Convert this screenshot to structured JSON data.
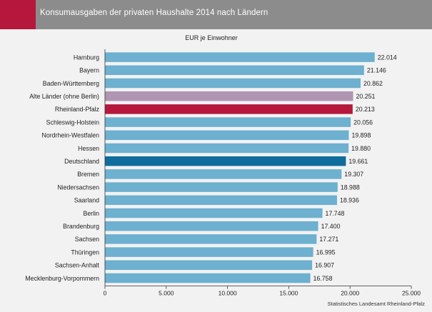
{
  "header": {
    "title": "Konsumausgaben der privaten Haushalte 2014 nach Ländern"
  },
  "source": "Statistisches Landesamt Rheinland-Pfalz",
  "colors": {
    "default_bar": "#6db0cf",
    "highlight_alte_laender": "#b095b3",
    "highlight_rheinland_pfalz": "#b5173d",
    "highlight_deutschland": "#0f6c9c",
    "header_bg": "#8c8c8c",
    "header_accent": "#b5173d"
  },
  "chart_data": {
    "type": "bar",
    "orientation": "horizontal",
    "subtitle": "EUR je Einwohner",
    "categories": [
      "Hamburg",
      "Bayern",
      "Baden-Württemberg",
      "Alte Länder (ohne Berlin)",
      "Rheinland-Pfalz",
      "Schleswig-Holstein",
      "Nordrhein-Westfalen",
      "Hessen",
      "Deutschland",
      "Bremen",
      "Niedersachsen",
      "Saarland",
      "Berlin",
      "Brandenburg",
      "Sachsen",
      "Thüringen",
      "Sachsen-Anhalt",
      "Mecklenburg-Vorpommern"
    ],
    "values": [
      22014,
      21146,
      20862,
      20251,
      20213,
      20056,
      19898,
      19880,
      19661,
      19307,
      18988,
      18936,
      17748,
      17400,
      17271,
      16995,
      16907,
      16758
    ],
    "data_labels": [
      "22.014",
      "21.146",
      "20.862",
      "20.251",
      "20.213",
      "20.056",
      "19.898",
      "19.880",
      "19.661",
      "19.307",
      "18.988",
      "18.936",
      "17.748",
      "17.400",
      "17.271",
      "16.995",
      "16.907",
      "16.758"
    ],
    "bar_colors": [
      "#6db0cf",
      "#6db0cf",
      "#6db0cf",
      "#b095b3",
      "#b5173d",
      "#6db0cf",
      "#6db0cf",
      "#6db0cf",
      "#0f6c9c",
      "#6db0cf",
      "#6db0cf",
      "#6db0cf",
      "#6db0cf",
      "#6db0cf",
      "#6db0cf",
      "#6db0cf",
      "#6db0cf",
      "#6db0cf"
    ],
    "xlim": [
      0,
      25000
    ],
    "xticks": [
      0,
      5000,
      10000,
      15000,
      20000,
      25000
    ],
    "xtick_labels": [
      "0",
      "5.000",
      "10.000",
      "15.000",
      "20.000",
      "25.000"
    ],
    "grid": false,
    "legend": "none"
  }
}
